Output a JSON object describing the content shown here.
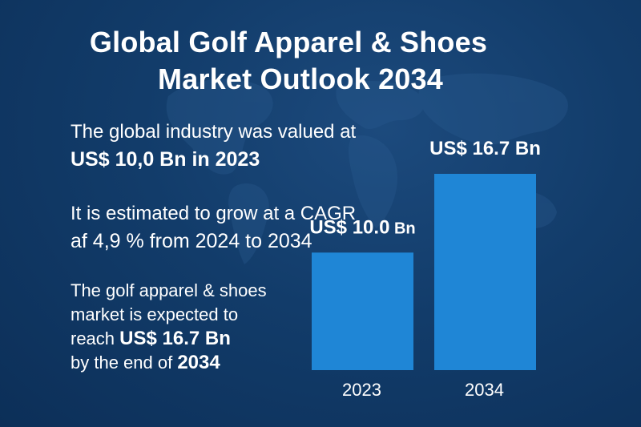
{
  "title": {
    "line1": "Global Golf Apparel & Shoes",
    "line2": "Market Outlook 2034"
  },
  "block1": {
    "line1": "The global industry was valued at",
    "line2": "US$ 10,0 Bn in 2023"
  },
  "block2": {
    "line1": "It is estimated to grow at a CAGR",
    "line2": "af 4,9 % from 2024 to 2034"
  },
  "block3": {
    "line1": "The golf apparel & shoes",
    "line2": "market is expected to",
    "line3_prefix": "reach ",
    "line3_value": "US$ 16.7 Bn",
    "line4_prefix": "by the end of ",
    "line4_value": "2034"
  },
  "colors": {
    "background": "#0f3561",
    "bar": "#1f86d6",
    "text": "#ffffff"
  },
  "chart_data": {
    "type": "bar",
    "categories": [
      "2023",
      "2034"
    ],
    "values": [
      10.0,
      16.7
    ],
    "data_labels": [
      {
        "main": "US$ 10.0",
        "suffix": " Bn"
      },
      {
        "main": "US$ 16.7 Bn",
        "suffix": ""
      }
    ],
    "ylim": [
      0,
      16.7
    ],
    "grid": false,
    "legend": "none"
  }
}
